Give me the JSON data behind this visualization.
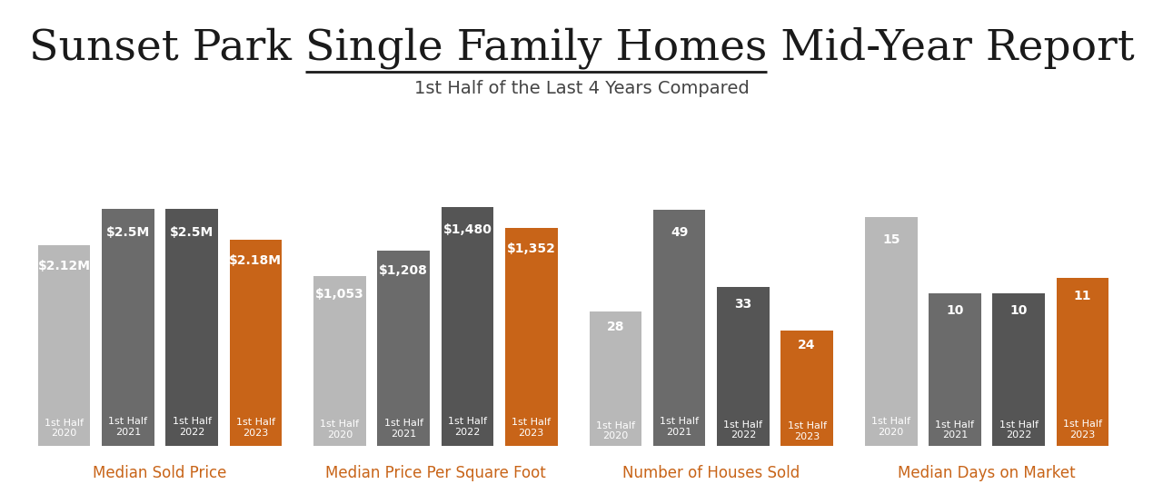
{
  "title_part1": "Sunset Park ",
  "title_part2": "Single Family Homes",
  "title_part3": " Mid-Year Report",
  "subtitle": "1st Half of the Last 4 Years Compared",
  "groups": [
    {
      "label": "Median Sold Price",
      "years": [
        "1st Half\n2020",
        "1st Half\n2021",
        "1st Half\n2022",
        "1st Half\n2023"
      ],
      "values": [
        2.12,
        2.5,
        2.5,
        2.18
      ],
      "value_labels": [
        "$2.12M",
        "$2.5M",
        "$2.5M",
        "$2.18M"
      ],
      "colors": [
        "#b8b8b8",
        "#6b6b6b",
        "#555555",
        "#c86418"
      ],
      "max_val": 2.9
    },
    {
      "label": "Median Price Per Square Foot",
      "years": [
        "1st Half\n2020",
        "1st Half\n2021",
        "1st Half\n2022",
        "1st Half\n2023"
      ],
      "values": [
        1053,
        1208,
        1480,
        1352
      ],
      "value_labels": [
        "$1,053",
        "$1,208",
        "$1,480",
        "$1,352"
      ],
      "colors": [
        "#b8b8b8",
        "#6b6b6b",
        "#555555",
        "#c86418"
      ],
      "max_val": 1700
    },
    {
      "label": "Number of Houses Sold",
      "years": [
        "1st Half\n2020",
        "1st Half\n2021",
        "1st Half\n2022",
        "1st Half\n2023"
      ],
      "values": [
        28,
        49,
        33,
        24
      ],
      "value_labels": [
        "28",
        "49",
        "33",
        "24"
      ],
      "colors": [
        "#b8b8b8",
        "#6b6b6b",
        "#555555",
        "#c86418"
      ],
      "max_val": 57
    },
    {
      "label": "Median Days on Market",
      "years": [
        "1st Half\n2020",
        "1st Half\n2021",
        "1st Half\n2022",
        "1st Half\n2023"
      ],
      "values": [
        15,
        10,
        10,
        11
      ],
      "value_labels": [
        "15",
        "10",
        "10",
        "11"
      ],
      "colors": [
        "#b8b8b8",
        "#6b6b6b",
        "#555555",
        "#c86418"
      ],
      "max_val": 18
    }
  ],
  "background_color": "#ffffff",
  "label_color": "#c86418",
  "bar_text_color": "#ffffff",
  "title_color": "#1a1a1a",
  "subtitle_color": "#444444",
  "title_fontsize": 34,
  "subtitle_fontsize": 14,
  "group_label_fontsize": 12,
  "value_label_fontsize": 10,
  "year_label_fontsize": 8
}
